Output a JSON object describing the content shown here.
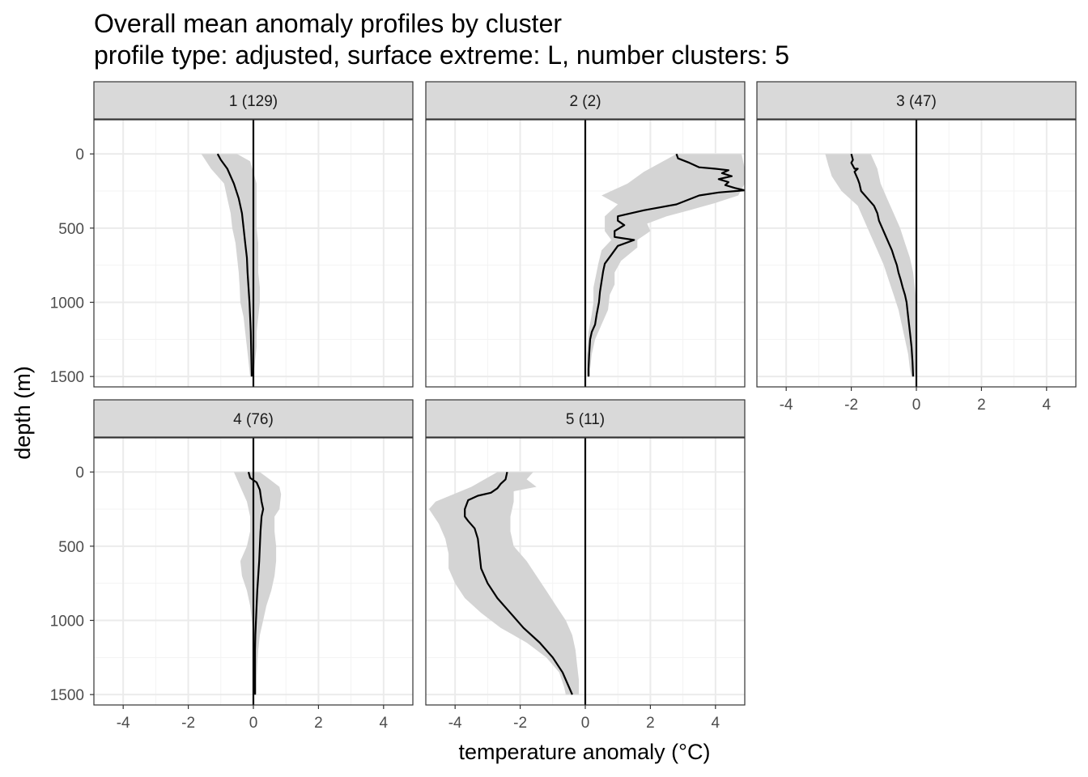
{
  "title": "Overall mean anomaly profiles by cluster",
  "subtitle": "profile type: adjusted, surface extreme: L, number clusters: 5",
  "colors": {
    "ribbon": "#d4d4d4",
    "line": "#000000",
    "strip": "#d9d9d9",
    "grid": "#ebebeb"
  },
  "chart_data": {
    "type": "line",
    "xlabel": "temperature anomaly (°C)",
    "ylabel": "depth (m)",
    "xlim": [
      -4.9,
      4.9
    ],
    "ylim": [
      1570,
      -230
    ],
    "x_ticks": [
      -4,
      -2,
      0,
      2,
      4
    ],
    "y_ticks": [
      0,
      500,
      1000,
      1500
    ],
    "y_reversed": true,
    "grid": true,
    "reference_line_x": 0,
    "panels": [
      {
        "label": "1 (129)",
        "mean": [
          [
            -1.1,
            0
          ],
          [
            -1.0,
            40
          ],
          [
            -0.8,
            100
          ],
          [
            -0.6,
            200
          ],
          [
            -0.45,
            300
          ],
          [
            -0.35,
            400
          ],
          [
            -0.3,
            500
          ],
          [
            -0.25,
            600
          ],
          [
            -0.2,
            700
          ],
          [
            -0.18,
            800
          ],
          [
            -0.15,
            900
          ],
          [
            -0.12,
            1000
          ],
          [
            -0.1,
            1100
          ],
          [
            -0.08,
            1200
          ],
          [
            -0.07,
            1300
          ],
          [
            -0.06,
            1400
          ],
          [
            -0.05,
            1500
          ]
        ],
        "lower": [
          [
            -1.6,
            0
          ],
          [
            -1.3,
            100
          ],
          [
            -0.9,
            200
          ],
          [
            -0.8,
            300
          ],
          [
            -0.7,
            400
          ],
          [
            -0.65,
            500
          ],
          [
            -0.55,
            600
          ],
          [
            -0.5,
            700
          ],
          [
            -0.45,
            800
          ],
          [
            -0.42,
            900
          ],
          [
            -0.4,
            1000
          ],
          [
            -0.3,
            1100
          ],
          [
            -0.25,
            1200
          ],
          [
            -0.2,
            1300
          ],
          [
            -0.15,
            1400
          ],
          [
            -0.1,
            1500
          ]
        ],
        "upper": [
          [
            -0.5,
            0
          ],
          [
            -0.1,
            50
          ],
          [
            0.1,
            200
          ],
          [
            0.1,
            300
          ],
          [
            0.1,
            400
          ],
          [
            0.1,
            500
          ],
          [
            0.15,
            600
          ],
          [
            0.15,
            700
          ],
          [
            0.15,
            800
          ],
          [
            0.2,
            900
          ],
          [
            0.2,
            1000
          ],
          [
            0.15,
            1100
          ],
          [
            0.1,
            1200
          ],
          [
            0.1,
            1300
          ],
          [
            0.05,
            1400
          ],
          [
            0.0,
            1500
          ]
        ]
      },
      {
        "label": "2 (2)",
        "mean": [
          [
            2.8,
            0
          ],
          [
            2.85,
            30
          ],
          [
            3.2,
            60
          ],
          [
            3.5,
            90
          ],
          [
            4.0,
            100
          ],
          [
            4.4,
            110
          ],
          [
            4.2,
            130
          ],
          [
            4.5,
            150
          ],
          [
            4.1,
            170
          ],
          [
            4.4,
            190
          ],
          [
            4.3,
            210
          ],
          [
            4.6,
            230
          ],
          [
            4.9,
            245
          ],
          [
            4.1,
            260
          ],
          [
            3.5,
            280
          ],
          [
            2.8,
            340
          ],
          [
            1.8,
            380
          ],
          [
            1.0,
            420
          ],
          [
            1.0,
            450
          ],
          [
            1.2,
            480
          ],
          [
            0.9,
            520
          ],
          [
            0.9,
            560
          ],
          [
            1.5,
            580
          ],
          [
            1.0,
            620
          ],
          [
            0.8,
            680
          ],
          [
            0.6,
            740
          ],
          [
            0.55,
            790
          ],
          [
            0.5,
            860
          ],
          [
            0.45,
            930
          ],
          [
            0.42,
            1000
          ],
          [
            0.35,
            1080
          ],
          [
            0.3,
            1150
          ],
          [
            0.2,
            1200
          ],
          [
            0.15,
            1250
          ],
          [
            0.12,
            1350
          ],
          [
            0.1,
            1450
          ],
          [
            0.1,
            1500
          ]
        ],
        "lower": [
          [
            2.8,
            0
          ],
          [
            1.8,
            120
          ],
          [
            1.3,
            200
          ],
          [
            0.5,
            280
          ],
          [
            1.0,
            340
          ],
          [
            0.6,
            420
          ],
          [
            0.6,
            520
          ],
          [
            0.8,
            580
          ],
          [
            0.5,
            650
          ],
          [
            0.4,
            740
          ],
          [
            0.25,
            900
          ],
          [
            0.25,
            1000
          ],
          [
            0.2,
            1080
          ],
          [
            0.1,
            1200
          ],
          [
            0.05,
            1350
          ],
          [
            0.05,
            1500
          ]
        ],
        "upper": [
          [
            4.8,
            0
          ],
          [
            4.9,
            100
          ],
          [
            4.9,
            200
          ],
          [
            4.7,
            280
          ],
          [
            4.0,
            330
          ],
          [
            3.2,
            380
          ],
          [
            2.5,
            420
          ],
          [
            1.9,
            470
          ],
          [
            2.0,
            520
          ],
          [
            1.6,
            580
          ],
          [
            1.6,
            630
          ],
          [
            1.1,
            720
          ],
          [
            0.9,
            800
          ],
          [
            0.9,
            880
          ],
          [
            0.75,
            950
          ],
          [
            0.7,
            1050
          ],
          [
            0.5,
            1150
          ],
          [
            0.3,
            1250
          ],
          [
            0.2,
            1350
          ],
          [
            0.15,
            1450
          ],
          [
            0.15,
            1500
          ]
        ]
      },
      {
        "label": "3 (47)",
        "mean": [
          [
            -2.0,
            0
          ],
          [
            -1.95,
            40
          ],
          [
            -2.0,
            60
          ],
          [
            -1.95,
            80
          ],
          [
            -1.9,
            100
          ],
          [
            -1.8,
            100
          ],
          [
            -1.9,
            120
          ],
          [
            -1.8,
            170
          ],
          [
            -1.75,
            200
          ],
          [
            -1.7,
            250
          ],
          [
            -1.5,
            300
          ],
          [
            -1.3,
            350
          ],
          [
            -1.2,
            400
          ],
          [
            -1.15,
            450
          ],
          [
            -1.05,
            500
          ],
          [
            -0.95,
            550
          ],
          [
            -0.85,
            600
          ],
          [
            -0.75,
            650
          ],
          [
            -0.68,
            700
          ],
          [
            -0.6,
            750
          ],
          [
            -0.55,
            800
          ],
          [
            -0.48,
            850
          ],
          [
            -0.42,
            900
          ],
          [
            -0.35,
            950
          ],
          [
            -0.3,
            1000
          ],
          [
            -0.25,
            1100
          ],
          [
            -0.2,
            1200
          ],
          [
            -0.15,
            1300
          ],
          [
            -0.12,
            1400
          ],
          [
            -0.1,
            1500
          ]
        ],
        "lower": [
          [
            -2.8,
            0
          ],
          [
            -2.7,
            80
          ],
          [
            -2.6,
            150
          ],
          [
            -2.3,
            250
          ],
          [
            -1.8,
            350
          ],
          [
            -1.6,
            450
          ],
          [
            -1.4,
            550
          ],
          [
            -1.2,
            650
          ],
          [
            -1.0,
            750
          ],
          [
            -0.85,
            850
          ],
          [
            -0.7,
            950
          ],
          [
            -0.55,
            1050
          ],
          [
            -0.45,
            1150
          ],
          [
            -0.35,
            1250
          ],
          [
            -0.25,
            1350
          ],
          [
            -0.2,
            1450
          ],
          [
            -0.15,
            1500
          ]
        ],
        "upper": [
          [
            -1.4,
            0
          ],
          [
            -1.2,
            100
          ],
          [
            -1.1,
            200
          ],
          [
            -0.9,
            300
          ],
          [
            -0.7,
            400
          ],
          [
            -0.5,
            500
          ],
          [
            -0.35,
            600
          ],
          [
            -0.2,
            700
          ],
          [
            -0.1,
            800
          ],
          [
            -0.05,
            900
          ],
          [
            0.0,
            1000
          ],
          [
            0.0,
            1100
          ],
          [
            0.0,
            1200
          ],
          [
            0.0,
            1300
          ],
          [
            0.0,
            1400
          ],
          [
            -0.05,
            1500
          ]
        ]
      },
      {
        "label": "4 (76)",
        "mean": [
          [
            -0.15,
            0
          ],
          [
            -0.1,
            40
          ],
          [
            0.1,
            70
          ],
          [
            0.2,
            120
          ],
          [
            0.25,
            200
          ],
          [
            0.3,
            250
          ],
          [
            0.25,
            300
          ],
          [
            0.22,
            400
          ],
          [
            0.2,
            500
          ],
          [
            0.18,
            600
          ],
          [
            0.15,
            700
          ],
          [
            0.12,
            800
          ],
          [
            0.1,
            900
          ],
          [
            0.08,
            1000
          ],
          [
            0.06,
            1100
          ],
          [
            0.05,
            1200
          ],
          [
            0.05,
            1300
          ],
          [
            0.05,
            1400
          ],
          [
            0.05,
            1500
          ]
        ],
        "lower": [
          [
            -0.6,
            0
          ],
          [
            -0.4,
            100
          ],
          [
            -0.2,
            200
          ],
          [
            -0.1,
            300
          ],
          [
            -0.1,
            400
          ],
          [
            -0.2,
            500
          ],
          [
            -0.4,
            600
          ],
          [
            -0.35,
            700
          ],
          [
            -0.2,
            800
          ],
          [
            -0.1,
            900
          ],
          [
            -0.05,
            1000
          ],
          [
            0.0,
            1100
          ],
          [
            0.0,
            1200
          ],
          [
            0.0,
            1300
          ],
          [
            0.0,
            1400
          ],
          [
            0.0,
            1500
          ]
        ],
        "upper": [
          [
            0.2,
            0
          ],
          [
            0.5,
            50
          ],
          [
            0.8,
            100
          ],
          [
            0.85,
            150
          ],
          [
            0.8,
            250
          ],
          [
            0.65,
            300
          ],
          [
            0.65,
            400
          ],
          [
            0.7,
            500
          ],
          [
            0.7,
            600
          ],
          [
            0.65,
            700
          ],
          [
            0.55,
            800
          ],
          [
            0.4,
            900
          ],
          [
            0.3,
            1000
          ],
          [
            0.2,
            1100
          ],
          [
            0.15,
            1200
          ],
          [
            0.12,
            1300
          ],
          [
            0.1,
            1400
          ],
          [
            0.1,
            1500
          ]
        ]
      },
      {
        "label": "5 (11)",
        "mean": [
          [
            -2.4,
            0
          ],
          [
            -2.45,
            50
          ],
          [
            -2.6,
            80
          ],
          [
            -2.7,
            110
          ],
          [
            -2.9,
            140
          ],
          [
            -3.3,
            160
          ],
          [
            -3.6,
            190
          ],
          [
            -3.7,
            250
          ],
          [
            -3.7,
            300
          ],
          [
            -3.6,
            330
          ],
          [
            -3.4,
            380
          ],
          [
            -3.3,
            450
          ],
          [
            -3.25,
            550
          ],
          [
            -3.2,
            650
          ],
          [
            -3.0,
            750
          ],
          [
            -2.7,
            850
          ],
          [
            -2.3,
            950
          ],
          [
            -1.9,
            1050
          ],
          [
            -1.4,
            1150
          ],
          [
            -1.0,
            1250
          ],
          [
            -0.7,
            1350
          ],
          [
            -0.5,
            1450
          ],
          [
            -0.4,
            1500
          ]
        ],
        "lower": [
          [
            -2.7,
            0
          ],
          [
            -3.5,
            100
          ],
          [
            -4.6,
            200
          ],
          [
            -4.8,
            250
          ],
          [
            -4.5,
            350
          ],
          [
            -4.3,
            450
          ],
          [
            -4.2,
            550
          ],
          [
            -4.2,
            650
          ],
          [
            -4.0,
            750
          ],
          [
            -3.7,
            850
          ],
          [
            -3.2,
            950
          ],
          [
            -2.6,
            1050
          ],
          [
            -1.8,
            1150
          ],
          [
            -1.2,
            1250
          ],
          [
            -0.8,
            1350
          ],
          [
            -0.65,
            1450
          ],
          [
            -0.6,
            1500
          ]
        ],
        "upper": [
          [
            -1.6,
            0
          ],
          [
            -1.8,
            50
          ],
          [
            -1.5,
            100
          ],
          [
            -2.2,
            130
          ],
          [
            -2.2,
            200
          ],
          [
            -2.3,
            300
          ],
          [
            -2.3,
            400
          ],
          [
            -2.2,
            500
          ],
          [
            -1.8,
            600
          ],
          [
            -1.5,
            700
          ],
          [
            -1.2,
            800
          ],
          [
            -0.9,
            900
          ],
          [
            -0.6,
            1000
          ],
          [
            -0.4,
            1100
          ],
          [
            -0.3,
            1200
          ],
          [
            -0.25,
            1300
          ],
          [
            -0.2,
            1400
          ],
          [
            -0.2,
            1500
          ]
        ]
      }
    ]
  }
}
